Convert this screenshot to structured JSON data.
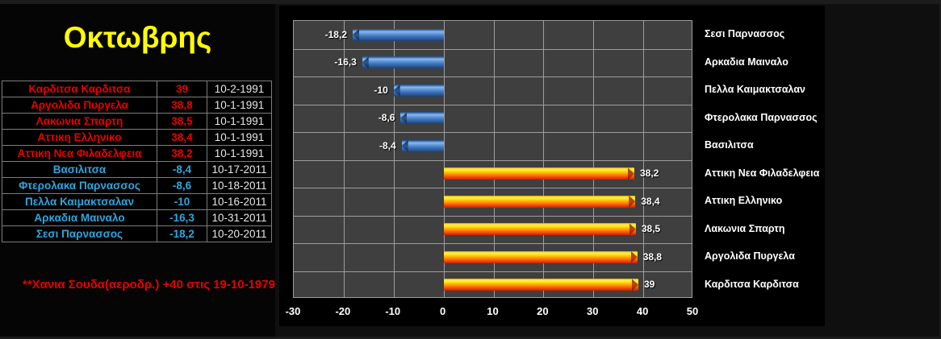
{
  "title": "Οκτωβρης",
  "footnote": "**Χανια Σουδα(αεροδρ.) +40 στις 19-10-1979",
  "table": {
    "rows": [
      {
        "name": "Καρδιτσα Καρδιτσα",
        "value": "39",
        "date": "10-2-1991",
        "type": "hot"
      },
      {
        "name": "Αργολιδα Πυργελα",
        "value": "38,8",
        "date": "10-1-1991",
        "type": "hot"
      },
      {
        "name": "Λακωνια Σπαρτη",
        "value": "38,5",
        "date": "10-1-1991",
        "type": "hot"
      },
      {
        "name": "Αττικη Ελληνικο",
        "value": "38,4",
        "date": "10-1-1991",
        "type": "hot"
      },
      {
        "name": "Αττικη Νεα Φιλαδελφεια",
        "value": "38,2",
        "date": "10-1-1991",
        "type": "hot"
      },
      {
        "name": "Βασιλιτσα",
        "value": "-8,4",
        "date": "10-17-2011",
        "type": "cold"
      },
      {
        "name": "Φτερολακα Παρνασσος",
        "value": "-8,6",
        "date": "10-18-2011",
        "type": "cold"
      },
      {
        "name": "Πελλα Καιμακτσαλαν",
        "value": "-10",
        "date": "10-16-2011",
        "type": "cold"
      },
      {
        "name": "Αρκαδια Μαιναλο",
        "value": "-16,3",
        "date": "10-31-2011",
        "type": "cold"
      },
      {
        "name": "Σεσι Παρνασσος",
        "value": "-18,2",
        "date": "10-20-2011",
        "type": "cold"
      }
    ]
  },
  "colors": {
    "title_text": "#ffff00",
    "hot_text": "#e80000",
    "cold_text": "#2da7dc",
    "date_text": "#e8e8e8",
    "chart_background": "#000000",
    "plot_background": "#3f3f3f",
    "gridline": "#9e9e9e",
    "negative_bar": "#3f76bc",
    "positive_bar": "#ff9a00",
    "label_text": "#ffffff"
  },
  "chart_data": {
    "type": "bar",
    "orientation": "horizontal",
    "categories": [
      "Σεσι Παρνασσος",
      "Αρκαδια Μαιναλο",
      "Πελλα Καιμακτσαλαν",
      "Φτερολακα Παρνασσος",
      "Βασιλιτσα",
      "Αττικη Νεα Φιλαδελφεια",
      "Αττικη Ελληνικο",
      "Λακωνια Σπαρτη",
      "Αργολιδα Πυργελα",
      "Καρδιτσα Καρδιτσα"
    ],
    "values": [
      -18.2,
      -16.3,
      -10,
      -8.6,
      -8.4,
      38.2,
      38.4,
      38.5,
      38.8,
      39
    ],
    "value_labels": [
      "-18,2",
      "-16,3",
      "-10",
      "-8,6",
      "-8,4",
      "38,2",
      "38,4",
      "38,5",
      "38,8",
      "39"
    ],
    "xlim": [
      -30,
      50
    ],
    "xticks": [
      -30,
      -20,
      -10,
      0,
      10,
      20,
      30,
      40,
      50
    ],
    "xtick_labels": [
      "-30",
      "-20",
      "-10",
      "0",
      "10",
      "20",
      "30",
      "40",
      "50"
    ],
    "grid": true,
    "legend": false,
    "title": "",
    "xlabel": "",
    "ylabel": ""
  }
}
